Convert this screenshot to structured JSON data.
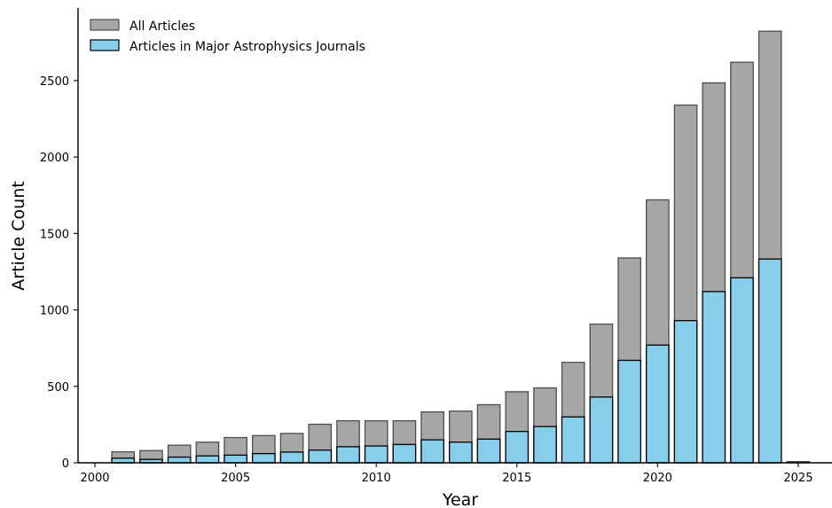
{
  "chart_data": {
    "type": "bar",
    "xlabel": "Year",
    "ylabel": "Article Count",
    "xlim": [
      1999.4,
      2026.2
    ],
    "ylim": [
      0,
      2975
    ],
    "xticks": [
      2000,
      2005,
      2010,
      2015,
      2020,
      2025
    ],
    "yticks": [
      0,
      500,
      1000,
      1500,
      2000,
      2500
    ],
    "legend_position": "upper-left",
    "x": [
      2001,
      2002,
      2003,
      2004,
      2005,
      2006,
      2007,
      2008,
      2009,
      2010,
      2011,
      2012,
      2013,
      2014,
      2015,
      2016,
      2017,
      2018,
      2019,
      2020,
      2021,
      2022,
      2023,
      2024,
      2025
    ],
    "series": [
      {
        "name": "All Articles",
        "color": "#a6a6a6",
        "edge_color": "#4d4d4d",
        "values": [
          72,
          80,
          115,
          135,
          165,
          178,
          192,
          252,
          275,
          275,
          275,
          333,
          338,
          380,
          465,
          490,
          657,
          907,
          1340,
          1720,
          2340,
          2485,
          2620,
          2823,
          8
        ]
      },
      {
        "name": "Articles in Major Astrophysics Journals",
        "color": "#87ceeb",
        "edge_color": "#000000",
        "values": [
          30,
          22,
          37,
          45,
          50,
          60,
          70,
          83,
          105,
          110,
          120,
          150,
          135,
          155,
          205,
          237,
          300,
          430,
          670,
          770,
          930,
          1120,
          1210,
          1333,
          0
        ]
      }
    ]
  }
}
